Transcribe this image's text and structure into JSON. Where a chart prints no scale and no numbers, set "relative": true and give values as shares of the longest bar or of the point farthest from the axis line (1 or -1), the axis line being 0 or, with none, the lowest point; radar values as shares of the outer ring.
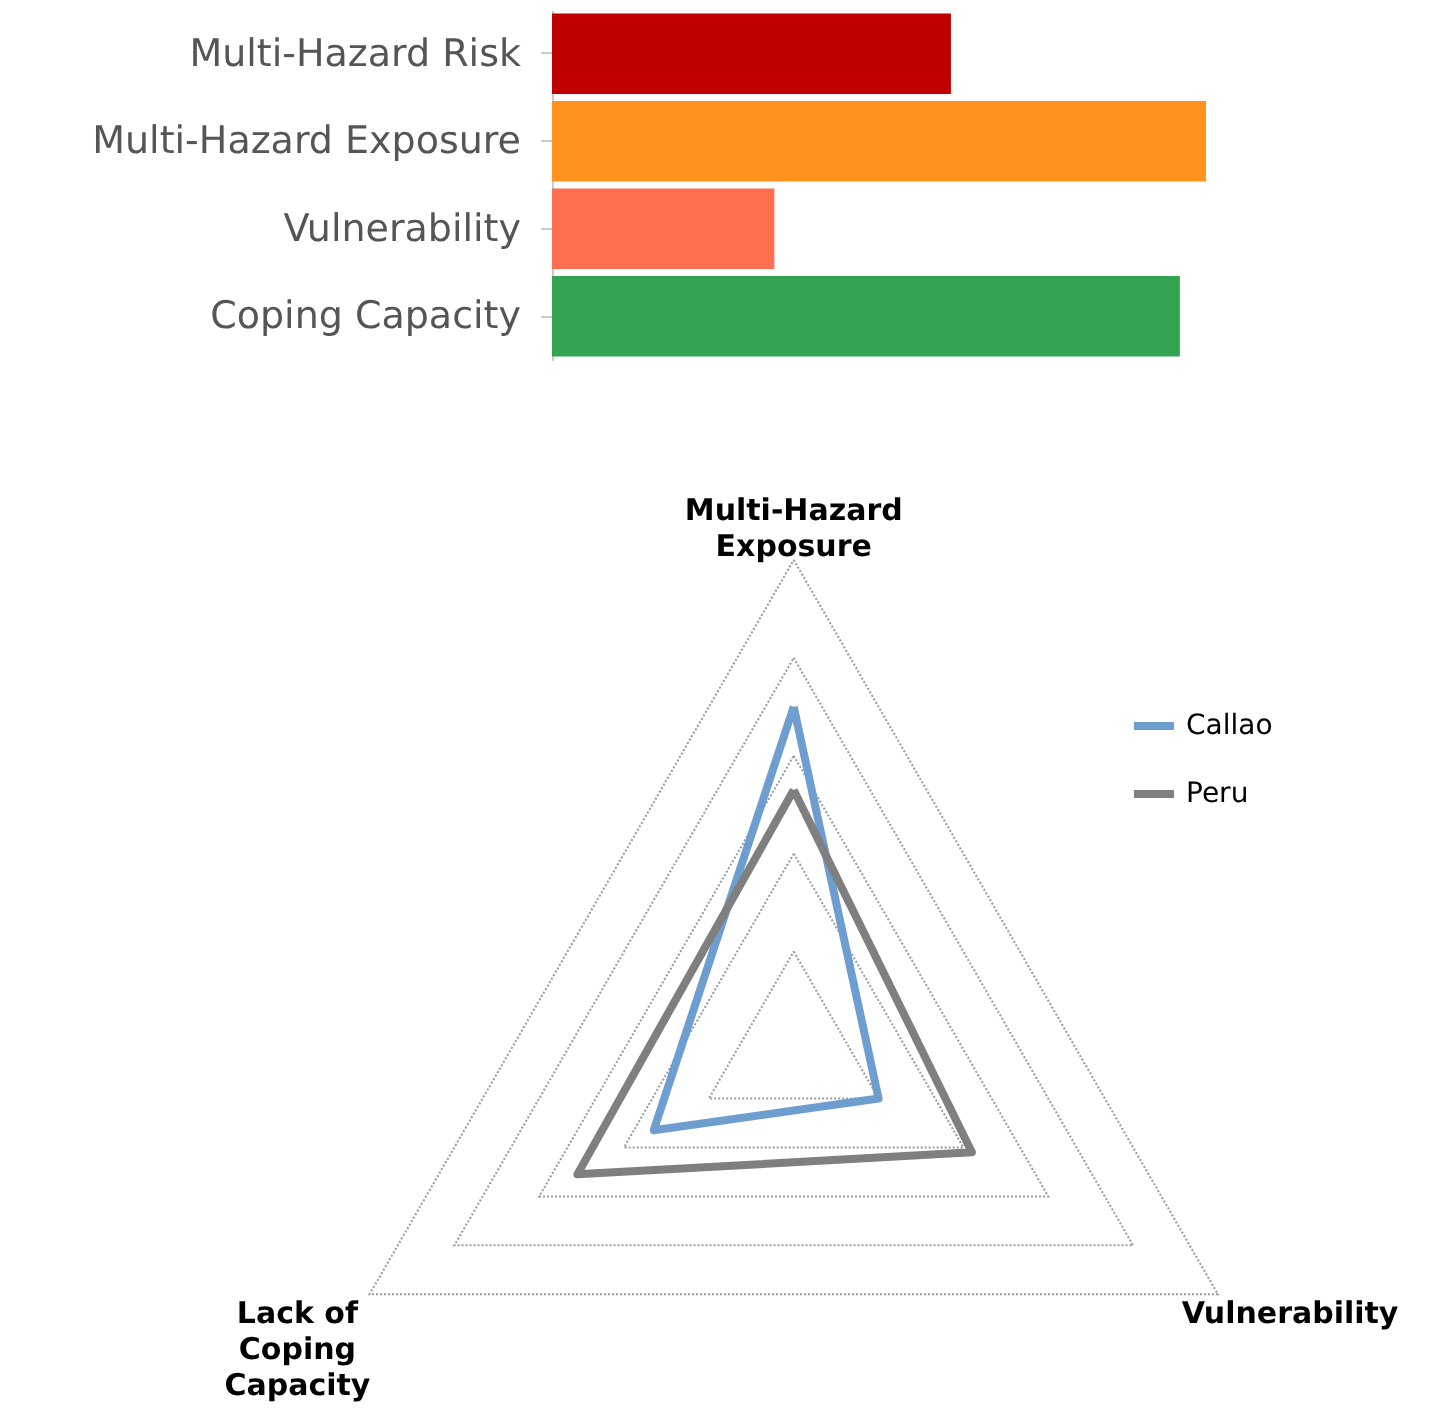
{
  "chart_data": [
    {
      "type": "bar",
      "orientation": "horizontal",
      "relative": true,
      "categories": [
        "Multi-Hazard Risk",
        "Multi-Hazard Exposure",
        "Vulnerability",
        "Coping Capacity"
      ],
      "values": [
        0.61,
        1,
        0.34,
        0.96
      ],
      "colors": [
        "#c00000",
        "#ff931e",
        "#ff6e4f",
        "#33a352"
      ]
    },
    {
      "type": "radar",
      "relative": true,
      "categories": [
        "Multi-Hazard Exposure",
        "Vulnerability",
        "Lack of Coping Capacity"
      ],
      "grid": true,
      "legend": "top right",
      "series": [
        {
          "name": "Callao",
          "color": "#6d9ecf",
          "values": [
            0.7,
            0.2,
            0.33
          ]
        },
        {
          "name": "Peru",
          "color": "#7f7f7f",
          "values": [
            0.53,
            0.42,
            0.51
          ]
        }
      ]
    }
  ]
}
